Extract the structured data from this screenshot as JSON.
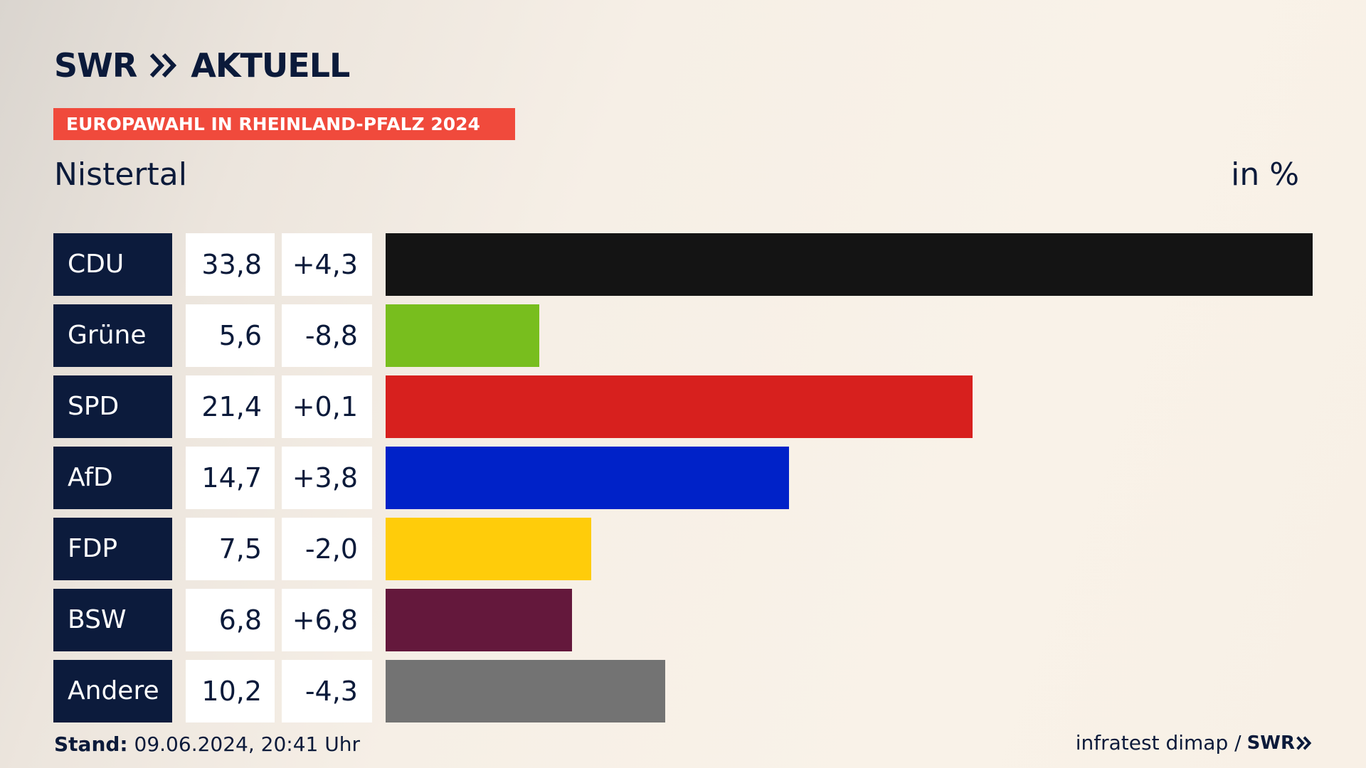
{
  "brand": {
    "logo_left": "SWR",
    "logo_right": "AKTUELL"
  },
  "banner": "EUROPAWAHL IN RHEINLAND-PFALZ 2024",
  "region": "Nistertal",
  "unit": "in %",
  "footer": {
    "stand_label": "Stand:",
    "stand_value": "09.06.2024, 20:41 Uhr",
    "source": "infratest dimap /",
    "source_logo": "SWR"
  },
  "chart_data": {
    "type": "bar",
    "orientation": "horizontal",
    "categories": [
      "CDU",
      "Grüne",
      "SPD",
      "AfD",
      "FDP",
      "BSW",
      "Andere"
    ],
    "values": [
      33.8,
      5.6,
      21.4,
      14.7,
      7.5,
      6.8,
      10.2
    ],
    "value_labels": [
      "33,8",
      "5,6",
      "21,4",
      "14,7",
      "7,5",
      "6,8",
      "10,2"
    ],
    "diff_labels": [
      "+4,3",
      "-8,8",
      "+0,1",
      "+3,8",
      "-2,0",
      "+6,8",
      "-4,3"
    ],
    "colors": [
      "#141414",
      "#78be1e",
      "#d7201e",
      "#0022c8",
      "#ffcc0a",
      "#64183c",
      "#737373"
    ],
    "xlim": [
      0,
      33.8
    ],
    "grid": false,
    "legend": "none"
  }
}
